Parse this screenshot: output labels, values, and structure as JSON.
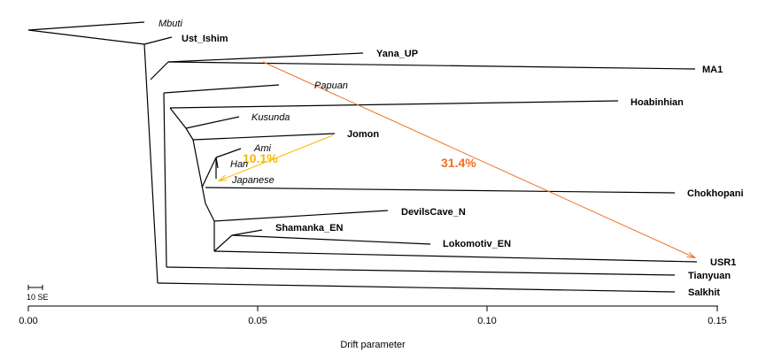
{
  "tree": {
    "root_label": "Mbuti",
    "tips": [
      {
        "id": "mbuti",
        "label": "Mbuti",
        "style": "italic"
      },
      {
        "id": "ust_ishim",
        "label": "Ust_Ishim",
        "style": "bold"
      },
      {
        "id": "yana_up",
        "label": "Yana_UP",
        "style": "bold"
      },
      {
        "id": "ma1",
        "label": "MA1",
        "style": "bold"
      },
      {
        "id": "papuan",
        "label": "Papuan",
        "style": "italic"
      },
      {
        "id": "hoabinhian",
        "label": "Hoabinhian",
        "style": "bold"
      },
      {
        "id": "kusunda",
        "label": "Kusunda",
        "style": "italic"
      },
      {
        "id": "jomon",
        "label": "Jomon",
        "style": "bold"
      },
      {
        "id": "ami",
        "label": "Ami",
        "style": "italic"
      },
      {
        "id": "han",
        "label": "Han",
        "style": "italic"
      },
      {
        "id": "japanese",
        "label": "Japanese",
        "style": "italic"
      },
      {
        "id": "chokhopani",
        "label": "Chokhopani",
        "style": "bold"
      },
      {
        "id": "devilscave_n",
        "label": "DevilsCave_N",
        "style": "bold"
      },
      {
        "id": "shamanka_en",
        "label": "Shamanka_EN",
        "style": "bold"
      },
      {
        "id": "lokomotiv_en",
        "label": "Lokomotiv_EN",
        "style": "bold"
      },
      {
        "id": "usr1",
        "label": "USR1",
        "style": "bold"
      },
      {
        "id": "tianyuan",
        "label": "Tianyuan",
        "style": "bold"
      },
      {
        "id": "salkhit",
        "label": "Salkhit",
        "style": "bold"
      }
    ],
    "migrations": [
      {
        "id": "jomon-to-japanese",
        "from": "Jomon",
        "to": "Japanese",
        "weight": "10.1%",
        "color": "#f5b800"
      },
      {
        "id": "yana-branch-to-usr1",
        "from": "Yana_UP branch",
        "to": "USR1",
        "weight": "31.4%",
        "color": "#f07020"
      }
    ]
  },
  "axis": {
    "title": "Drift parameter",
    "ticks": [
      "0.00",
      "0.05",
      "0.10",
      "0.15"
    ]
  },
  "scale_bar": {
    "label": "10 SE"
  },
  "colors": {
    "tree_line": "#000000",
    "migration_low": "#f5b800",
    "migration_high": "#f07020"
  }
}
